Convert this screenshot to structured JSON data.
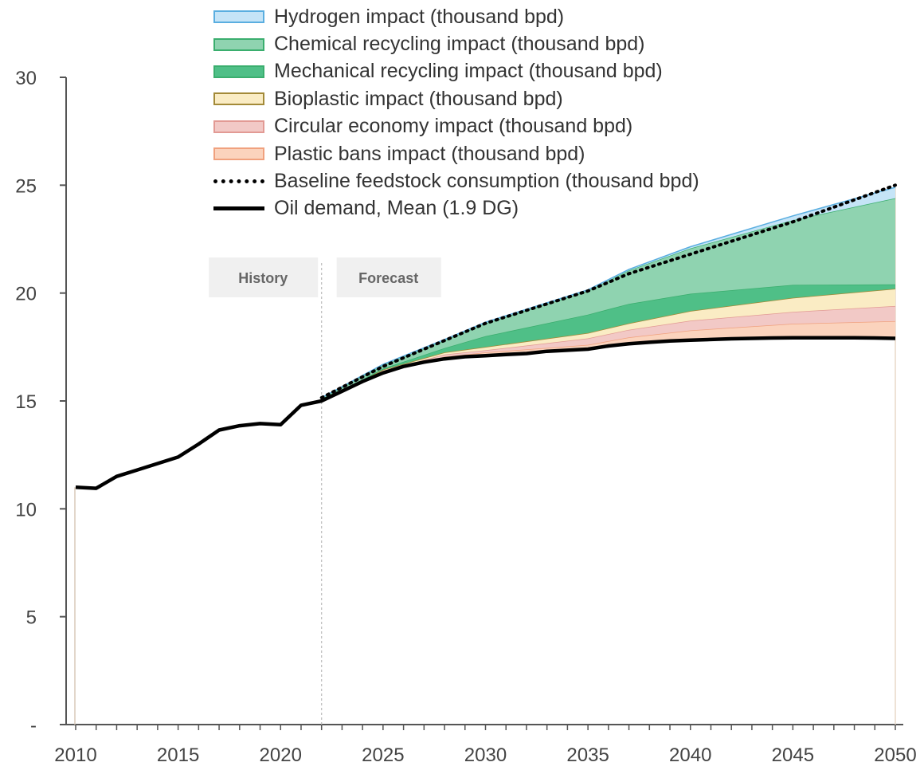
{
  "chart_data": {
    "type": "area",
    "title": "",
    "xlabel": "",
    "ylabel": "",
    "xlim": [
      2010,
      2050
    ],
    "ylim": [
      0,
      30
    ],
    "x_ticks": [
      "2010",
      "2015",
      "2020",
      "2025",
      "2030",
      "2035",
      "2040",
      "2045",
      "2050"
    ],
    "y_ticks": [
      "-",
      "5",
      "10",
      "15",
      "20",
      "25",
      "30"
    ],
    "period_labels": {
      "history": "History",
      "forecast": "Forecast"
    },
    "divider_year": 2022,
    "oil_demand": {
      "name": "Oil demand, Mean (1.9 DG)",
      "x": [
        2010,
        2011,
        2012,
        2013,
        2014,
        2015,
        2016,
        2017,
        2018,
        2019,
        2020,
        2021,
        2022,
        2023,
        2024,
        2025,
        2026,
        2027,
        2028,
        2029,
        2030,
        2031,
        2032,
        2033,
        2034,
        2035,
        2036,
        2037,
        2038,
        2039,
        2040,
        2041,
        2042,
        2043,
        2044,
        2045,
        2046,
        2047,
        2048,
        2049,
        2050
      ],
      "y": [
        11.0,
        10.95,
        11.5,
        11.8,
        12.1,
        12.4,
        13.0,
        13.65,
        13.85,
        13.95,
        13.9,
        14.8,
        15.0,
        15.45,
        15.9,
        16.3,
        16.6,
        16.8,
        16.95,
        17.05,
        17.1,
        17.15,
        17.2,
        17.3,
        17.35,
        17.4,
        17.55,
        17.65,
        17.72,
        17.78,
        17.82,
        17.85,
        17.88,
        17.9,
        17.92,
        17.93,
        17.93,
        17.93,
        17.93,
        17.92,
        17.9
      ]
    },
    "forecast_x": [
      2022,
      2025,
      2028,
      2030,
      2035,
      2037,
      2040,
      2045,
      2050
    ],
    "oil_demand_forecast": [
      15.0,
      16.3,
      16.95,
      17.1,
      17.4,
      17.65,
      17.82,
      17.93,
      17.9
    ],
    "series": [
      {
        "name": "Plastic bans impact (thousand bpd)",
        "values": [
          0,
          0.05,
          0.1,
          0.15,
          0.2,
          0.3,
          0.45,
          0.65,
          0.8
        ]
      },
      {
        "name": "Circular economy impact (thousand bpd)",
        "values": [
          0,
          0.05,
          0.1,
          0.1,
          0.3,
          0.35,
          0.45,
          0.55,
          0.7
        ]
      },
      {
        "name": "Bioplastic impact (thousand bpd)",
        "values": [
          0,
          0.05,
          0.1,
          0.15,
          0.25,
          0.3,
          0.45,
          0.65,
          0.8
        ]
      },
      {
        "name": "Mechanical recycling impact (thousand bpd)",
        "values": [
          0,
          0.05,
          0.2,
          0.5,
          0.85,
          0.9,
          0.8,
          0.6,
          0.2
        ]
      },
      {
        "name": "Chemical recycling impact (thousand bpd)",
        "values": [
          0.1,
          0.15,
          0.35,
          0.6,
          1.1,
          1.55,
          2.1,
          3.0,
          4.0
        ]
      },
      {
        "name": "Hydrogen impact (thousand bpd)",
        "values": [
          0.05,
          0.05,
          0.05,
          0.05,
          0.05,
          0.05,
          0.08,
          0.2,
          0.5
        ]
      }
    ],
    "baseline": {
      "name": "Baseline feedstock consumption (thousand bpd)",
      "x": [
        2022,
        2025,
        2028,
        2030,
        2035,
        2037,
        2040,
        2045,
        2050
      ],
      "y": [
        15.15,
        16.6,
        17.8,
        18.6,
        20.1,
        20.9,
        21.8,
        23.3,
        25.0
      ]
    },
    "colors": {
      "hydrogen": {
        "fill": "#c5e4f7",
        "stroke": "#5aaee0"
      },
      "chemical": {
        "fill": "#8fd3b0",
        "stroke": "#3aae6e"
      },
      "mechanical": {
        "fill": "#4fbf87",
        "stroke": "#3aae6e"
      },
      "bioplastic": {
        "fill": "#faecc4",
        "stroke": "#a38a38"
      },
      "circular": {
        "fill": "#f2c9c6",
        "stroke": "#e29a94"
      },
      "bans": {
        "fill": "#fbd3bd",
        "stroke": "#f0a17e"
      },
      "line": "#000000"
    },
    "legend": [
      {
        "label": "Hydrogen impact (thousand bpd)",
        "key": "hydrogen"
      },
      {
        "label": "Chemical recycling impact (thousand bpd)",
        "key": "chemical"
      },
      {
        "label": "Mechanical recycling impact (thousand bpd)",
        "key": "mechanical"
      },
      {
        "label": "Bioplastic impact (thousand bpd)",
        "key": "bioplastic"
      },
      {
        "label": "Circular economy impact (thousand bpd)",
        "key": "circular"
      },
      {
        "label": "Plastic bans impact (thousand bpd)",
        "key": "bans"
      },
      {
        "label": "Baseline feedstock consumption (thousand bpd)",
        "key": "dotted"
      },
      {
        "label": "Oil demand, Mean (1.9 DG)",
        "key": "solid"
      }
    ],
    "legend_position": "top"
  }
}
